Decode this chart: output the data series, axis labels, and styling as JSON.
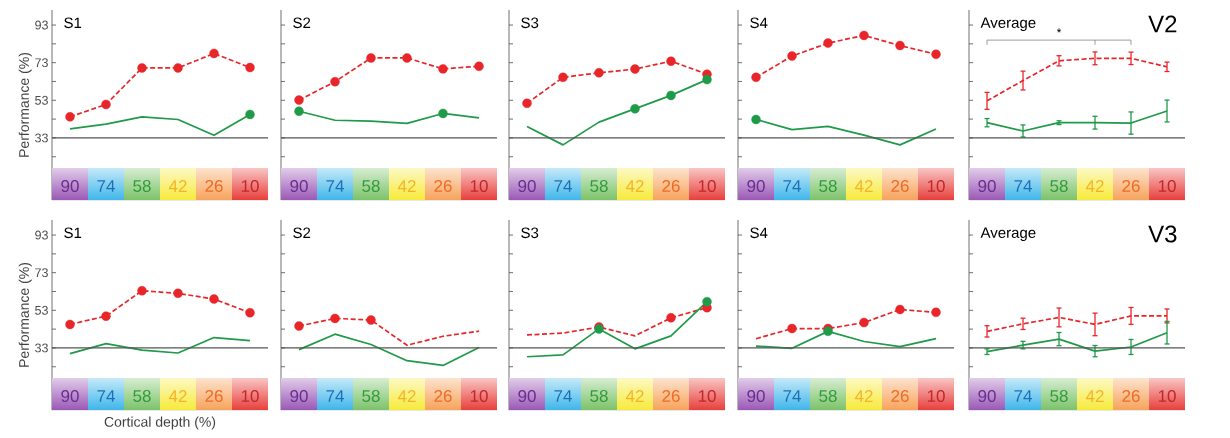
{
  "chart_data": [
    {
      "type": "line",
      "title": "S1",
      "ylabel": "Performance (%)",
      "categories": [
        "90",
        "74",
        "58",
        "42",
        "26",
        "10"
      ],
      "ylim": [
        0,
        101
      ],
      "yticks": [
        {
          "value": 23,
          "label": null
        },
        33,
        {
          "value": 43,
          "label": null
        },
        53,
        {
          "value": 63,
          "label": null
        },
        73,
        {
          "value": 83,
          "label": null
        },
        93
      ],
      "ref_lines": [
        {
          "axis": "y",
          "value": 33,
          "color": "#555555"
        }
      ],
      "series": [
        {
          "color": "#e8262a",
          "line_style": "dashed",
          "values": [
            44.2,
            50.8,
            70.2,
            70.2,
            77.9,
            70.4
          ]
        },
        {
          "type": "scatter",
          "color": "#e8262a",
          "marker": "circle",
          "values": [
            44.2,
            50.8,
            70.2,
            70.2,
            77.9,
            70.4
          ]
        },
        {
          "color": "#1f9a48",
          "line_style": "solid",
          "values": [
            37.8,
            40.3,
            44.2,
            42.8,
            34.4,
            45.5
          ]
        },
        {
          "type": "scatter",
          "color": "#1f9a48",
          "marker": "circle",
          "values": [
            null,
            null,
            null,
            null,
            null,
            45.5
          ]
        }
      ]
    },
    {
      "type": "line",
      "title": "S2",
      "categories": [
        "90",
        "74",
        "58",
        "42",
        "26",
        "10"
      ],
      "ylim": [
        0,
        101
      ],
      "yticks": [
        {
          "value": 23,
          "label": null
        },
        33,
        {
          "value": 43,
          "label": null
        },
        53,
        {
          "value": 63,
          "label": null
        },
        73,
        {
          "value": 83,
          "label": null
        },
        93
      ],
      "tick_labels": "x",
      "ref_lines": [
        {
          "axis": "y",
          "value": 33,
          "color": "#555555"
        }
      ],
      "series": [
        {
          "color": "#e8262a",
          "line_style": "dashed",
          "values": [
            53.1,
            62.9,
            75.5,
            75.5,
            69.7,
            71.1
          ]
        },
        {
          "type": "scatter",
          "color": "#e8262a",
          "marker": "circle",
          "values": [
            53.1,
            62.9,
            75.5,
            75.5,
            69.7,
            71.1
          ]
        },
        {
          "color": "#1f9a48",
          "line_style": "solid",
          "values": [
            47.2,
            42.4,
            41.9,
            40.7,
            46.0,
            43.7
          ]
        },
        {
          "type": "scatter",
          "color": "#1f9a48",
          "marker": "circle",
          "values": [
            47.2,
            null,
            null,
            null,
            46.0,
            null
          ]
        }
      ]
    },
    {
      "type": "line",
      "title": "S3",
      "categories": [
        "90",
        "74",
        "58",
        "42",
        "26",
        "10"
      ],
      "ylim": [
        0,
        101
      ],
      "yticks": [
        {
          "value": 23,
          "label": null
        },
        33,
        {
          "value": 43,
          "label": null
        },
        53,
        {
          "value": 63,
          "label": null
        },
        73,
        {
          "value": 83,
          "label": null
        },
        93
      ],
      "tick_labels": "x",
      "ref_lines": [
        {
          "axis": "y",
          "value": 33,
          "color": "#555555"
        }
      ],
      "series": [
        {
          "color": "#e8262a",
          "line_style": "dashed",
          "values": [
            51.4,
            65.2,
            67.6,
            69.6,
            73.8,
            66.9
          ]
        },
        {
          "type": "scatter",
          "color": "#e8262a",
          "marker": "circle",
          "values": [
            51.4,
            65.2,
            67.6,
            69.6,
            73.8,
            66.9
          ]
        },
        {
          "color": "#1f9a48",
          "line_style": "solid",
          "values": [
            39.1,
            29.3,
            41.4,
            48.5,
            55.6,
            64.0
          ]
        },
        {
          "type": "scatter",
          "color": "#1f9a48",
          "marker": "circle",
          "values": [
            null,
            null,
            null,
            48.5,
            55.6,
            64.0
          ]
        }
      ]
    },
    {
      "type": "line",
      "title": "S4",
      "categories": [
        "90",
        "74",
        "58",
        "42",
        "26",
        "10"
      ],
      "ylim": [
        0,
        101
      ],
      "yticks": [
        {
          "value": 23,
          "label": null
        },
        33,
        {
          "value": 43,
          "label": null
        },
        53,
        {
          "value": 63,
          "label": null
        },
        73,
        {
          "value": 83,
          "label": null
        },
        93
      ],
      "tick_labels": "x",
      "ref_lines": [
        {
          "axis": "y",
          "value": 33,
          "color": "#555555"
        }
      ],
      "series": [
        {
          "color": "#e8262a",
          "line_style": "dashed",
          "values": [
            65.2,
            76.5,
            83.4,
            87.5,
            82.1,
            77.5
          ]
        },
        {
          "type": "scatter",
          "color": "#e8262a",
          "marker": "circle",
          "values": [
            65.2,
            76.5,
            83.4,
            87.5,
            82.1,
            77.5
          ]
        },
        {
          "color": "#1f9a48",
          "line_style": "solid",
          "values": [
            42.8,
            37.4,
            39.1,
            34.5,
            29.3,
            37.7
          ]
        },
        {
          "type": "scatter",
          "color": "#1f9a48",
          "marker": "circle",
          "values": [
            42.8,
            null,
            null,
            null,
            null,
            null
          ]
        }
      ]
    },
    {
      "type": "line",
      "title": "Average",
      "subtitle": "V2",
      "annotations": [
        "*"
      ],
      "categories": [
        "90",
        "74",
        "58",
        "42",
        "26",
        "10"
      ],
      "ylim": [
        0,
        101
      ],
      "yticks": [
        {
          "value": 23,
          "label": null
        },
        33,
        {
          "value": 43,
          "label": null
        },
        53,
        {
          "value": 63,
          "label": null
        },
        73,
        {
          "value": 83,
          "label": null
        },
        93
      ],
      "tick_labels": "x",
      "ref_lines": [
        {
          "axis": "y",
          "value": 33,
          "color": "#555555"
        }
      ],
      "series": [
        {
          "color": "#e8262a",
          "line_style": "dashed",
          "values": [
            52.7,
            63.5,
            74.0,
            75.3,
            75.3,
            70.8
          ],
          "errors": [
            4.5,
            5.0,
            2.7,
            3.4,
            3.3,
            2.5
          ]
        },
        {
          "color": "#1f9a48",
          "line_style": "solid",
          "values": [
            41.1,
            36.7,
            41.1,
            41.1,
            40.9,
            47.3
          ],
          "errors": [
            2.2,
            3.2,
            1.0,
            3.4,
            5.9,
            5.8
          ]
        }
      ]
    },
    {
      "type": "line",
      "title": "S1",
      "ylabel": "Performance (%)",
      "xlabel": "Cortical depth (%)",
      "categories": [
        "90",
        "74",
        "58",
        "42",
        "26",
        "10"
      ],
      "ylim": [
        0,
        101
      ],
      "yticks": [
        {
          "value": 23,
          "label": null
        },
        33,
        {
          "value": 43,
          "label": null
        },
        53,
        {
          "value": 63,
          "label": null
        },
        73,
        {
          "value": 83,
          "label": null
        },
        93
      ],
      "ref_lines": [
        {
          "axis": "y",
          "value": 33,
          "color": "#555555"
        }
      ],
      "series": [
        {
          "color": "#e8262a",
          "line_style": "dashed",
          "values": [
            45.5,
            49.9,
            63.4,
            62.0,
            59.0,
            51.7
          ]
        },
        {
          "type": "scatter",
          "color": "#e8262a",
          "marker": "circle",
          "values": [
            45.5,
            49.9,
            63.4,
            62.0,
            59.0,
            51.7
          ]
        },
        {
          "color": "#1f9a48",
          "line_style": "solid",
          "values": [
            30.0,
            35.3,
            31.8,
            30.3,
            38.5,
            36.9
          ]
        }
      ]
    },
    {
      "type": "line",
      "title": "S2",
      "categories": [
        "90",
        "74",
        "58",
        "42",
        "26",
        "10"
      ],
      "ylim": [
        0,
        101
      ],
      "yticks": [
        {
          "value": 23,
          "label": null
        },
        33,
        {
          "value": 43,
          "label": null
        },
        53,
        {
          "value": 63,
          "label": null
        },
        73,
        {
          "value": 83,
          "label": null
        },
        93
      ],
      "tick_labels": "x",
      "ref_lines": [
        {
          "axis": "y",
          "value": 33,
          "color": "#555555"
        }
      ],
      "series": [
        {
          "color": "#e8262a",
          "line_style": "dashed",
          "values": [
            44.6,
            48.7,
            47.8,
            34.4,
            39.2,
            41.9
          ]
        },
        {
          "type": "scatter",
          "color": "#e8262a",
          "marker": "circle",
          "values": [
            44.6,
            48.7,
            47.8,
            null,
            null,
            null
          ]
        },
        {
          "color": "#1f9a48",
          "line_style": "solid",
          "values": [
            32.1,
            40.3,
            34.8,
            26.2,
            23.7,
            33.2
          ]
        }
      ]
    },
    {
      "type": "line",
      "title": "S3",
      "categories": [
        "90",
        "74",
        "58",
        "42",
        "26",
        "10"
      ],
      "ylim": [
        0,
        101
      ],
      "yticks": [
        {
          "value": 23,
          "label": null
        },
        33,
        {
          "value": 43,
          "label": null
        },
        53,
        {
          "value": 63,
          "label": null
        },
        73,
        {
          "value": 83,
          "label": null
        },
        93
      ],
      "tick_labels": "x",
      "ref_lines": [
        {
          "axis": "y",
          "value": 33,
          "color": "#555555"
        }
      ],
      "series": [
        {
          "color": "#e8262a",
          "line_style": "dashed",
          "values": [
            39.9,
            40.9,
            44.1,
            39.4,
            49.0,
            54.4
          ]
        },
        {
          "type": "scatter",
          "color": "#e8262a",
          "marker": "circle",
          "values": [
            null,
            null,
            44.1,
            null,
            49.0,
            54.4
          ]
        },
        {
          "color": "#1f9a48",
          "line_style": "solid",
          "values": [
            28.3,
            29.3,
            43.1,
            32.5,
            39.4,
            57.6
          ]
        },
        {
          "type": "scatter",
          "color": "#1f9a48",
          "marker": "circle",
          "values": [
            null,
            null,
            43.1,
            null,
            null,
            57.6
          ]
        }
      ]
    },
    {
      "type": "line",
      "title": "S4",
      "categories": [
        "90",
        "74",
        "58",
        "42",
        "26",
        "10"
      ],
      "ylim": [
        0,
        101
      ],
      "yticks": [
        {
          "value": 23,
          "label": null
        },
        33,
        {
          "value": 43,
          "label": null
        },
        53,
        {
          "value": 63,
          "label": null
        },
        73,
        {
          "value": 83,
          "label": null
        },
        93
      ],
      "tick_labels": "x",
      "ref_lines": [
        {
          "axis": "y",
          "value": 33,
          "color": "#555555"
        }
      ],
      "series": [
        {
          "color": "#e8262a",
          "line_style": "dashed",
          "values": [
            37.9,
            43.3,
            43.3,
            46.5,
            53.4,
            51.9
          ]
        },
        {
          "type": "scatter",
          "color": "#e8262a",
          "marker": "circle",
          "values": [
            null,
            43.3,
            43.3,
            46.5,
            53.4,
            51.9
          ]
        },
        {
          "color": "#1f9a48",
          "line_style": "solid",
          "values": [
            34.0,
            32.8,
            41.8,
            36.4,
            33.7,
            37.9
          ]
        },
        {
          "type": "scatter",
          "color": "#1f9a48",
          "marker": "circle",
          "values": [
            null,
            null,
            41.8,
            null,
            null,
            null
          ]
        }
      ]
    },
    {
      "type": "line",
      "title": "Average",
      "subtitle": "V3",
      "categories": [
        "90",
        "74",
        "58",
        "42",
        "26",
        "10"
      ],
      "ylim": [
        0,
        101
      ],
      "yticks": [
        {
          "value": 23,
          "label": null
        },
        33,
        {
          "value": 43,
          "label": null
        },
        53,
        {
          "value": 63,
          "label": null
        },
        73,
        {
          "value": 83,
          "label": null
        },
        93
      ],
      "tick_labels": "x",
      "ref_lines": [
        {
          "axis": "y",
          "value": 33,
          "color": "#555555"
        }
      ],
      "series": [
        {
          "color": "#e8262a",
          "line_style": "dashed",
          "values": [
            41.8,
            45.8,
            49.2,
            45.5,
            50.0,
            50.0
          ],
          "errors": [
            3.0,
            3.0,
            5.0,
            6.0,
            4.5,
            3.7
          ]
        },
        {
          "color": "#1f9a48",
          "line_style": "solid",
          "values": [
            31.0,
            34.5,
            37.7,
            31.3,
            33.5,
            41.1
          ],
          "errors": [
            1.5,
            2.0,
            3.5,
            3.0,
            4.0,
            6.0
          ]
        }
      ]
    }
  ]
}
